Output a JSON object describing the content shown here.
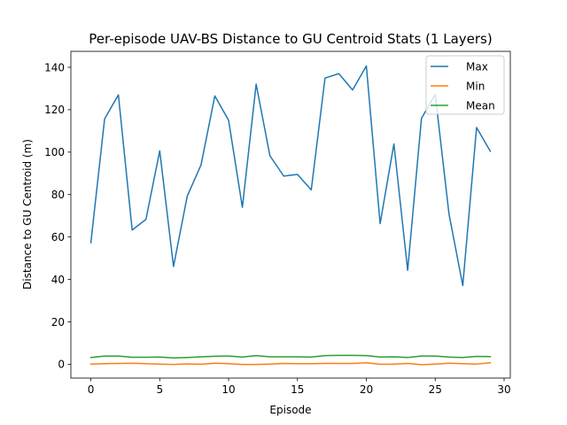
{
  "chart_data": {
    "type": "line",
    "title": "Per-episode UAV-BS Distance to GU Centroid Stats (1 Layers)",
    "xlabel": "Episode",
    "ylabel": "Distance to GU Centroid (m)",
    "xlim": [
      -1.45,
      30.45
    ],
    "ylim": [
      -6.5,
      147.5
    ],
    "xticks": [
      0,
      5,
      10,
      15,
      20,
      25,
      30
    ],
    "yticks": [
      0,
      20,
      40,
      60,
      80,
      100,
      120,
      140
    ],
    "legend_position": "top-right",
    "x": [
      0,
      1,
      2,
      3,
      4,
      5,
      6,
      7,
      8,
      9,
      10,
      11,
      12,
      13,
      14,
      15,
      16,
      17,
      18,
      19,
      20,
      21,
      22,
      23,
      24,
      25,
      26,
      27,
      28,
      29
    ],
    "series": [
      {
        "name": "Max",
        "color": "#1f77b4",
        "values": [
          57.3,
          115.7,
          127.0,
          63.3,
          68.3,
          100.6,
          46.1,
          79.3,
          94.0,
          126.5,
          115.0,
          74.0,
          132.0,
          98.3,
          88.7,
          89.5,
          82.2,
          134.9,
          137.0,
          129.3,
          140.6,
          66.3,
          103.9,
          44.3,
          115.9,
          127.2,
          70.8,
          37.1,
          111.6,
          100.4
        ]
      },
      {
        "name": "Min",
        "color": "#ff7f0e",
        "values": [
          0.1,
          0.3,
          0.4,
          0.5,
          0.3,
          0.1,
          -0.1,
          0.2,
          0.0,
          0.5,
          0.3,
          -0.1,
          -0.1,
          0.1,
          0.4,
          0.3,
          0.3,
          0.4,
          0.4,
          0.4,
          0.7,
          0.0,
          0.1,
          0.4,
          -0.2,
          0.1,
          0.5,
          0.3,
          0.1,
          0.7
        ]
      },
      {
        "name": "Mean",
        "color": "#2ca02c",
        "values": [
          3.2,
          3.9,
          3.9,
          3.3,
          3.3,
          3.4,
          3.0,
          3.2,
          3.5,
          3.8,
          3.9,
          3.4,
          4.1,
          3.5,
          3.5,
          3.5,
          3.4,
          4.1,
          4.2,
          4.2,
          4.1,
          3.4,
          3.5,
          3.2,
          3.9,
          3.9,
          3.4,
          3.2,
          3.7,
          3.6
        ]
      }
    ]
  }
}
